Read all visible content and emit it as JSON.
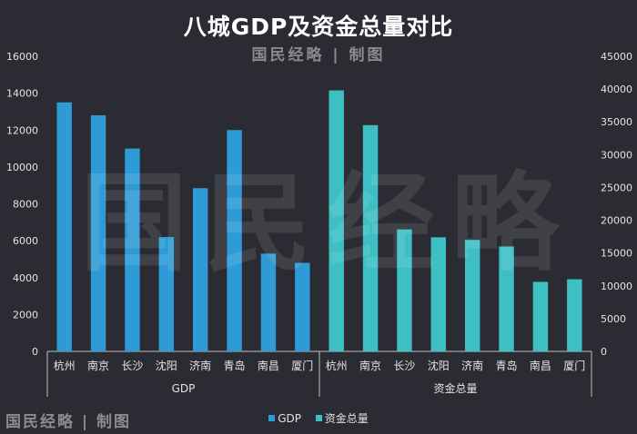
{
  "title": "八城GDP及资金总量对比",
  "subtitle": "国民经略 | 制图",
  "watermark_big": "国民经略",
  "watermark_corner": "国民经略 | 制图",
  "colors": {
    "background": "#2b2c33",
    "gdp_bar": "#2e9bd6",
    "fund_bar": "#3dbfc4",
    "axis_text": "#e4e4e4",
    "axis_line": "#bfbfbf"
  },
  "chart_data": {
    "type": "bar",
    "title": "八城GDP及资金总量对比",
    "groups": [
      {
        "name": "GDP",
        "axis": "left",
        "categories": [
          "杭州",
          "南京",
          "长沙",
          "沈阳",
          "济南",
          "青岛",
          "南昌",
          "厦门"
        ],
        "values": [
          13500,
          12800,
          11000,
          6200,
          8850,
          12000,
          5300,
          4800
        ]
      },
      {
        "name": "资金总量",
        "axis": "right",
        "categories": [
          "杭州",
          "南京",
          "长沙",
          "沈阳",
          "济南",
          "青岛",
          "南昌",
          "厦门"
        ],
        "values": [
          39800,
          34500,
          18600,
          17400,
          17000,
          16000,
          10600,
          11000
        ]
      }
    ],
    "left_axis": {
      "min": 0,
      "max": 16000,
      "ticks": [
        "0",
        "2000",
        "4000",
        "6000",
        "8000",
        "10000",
        "12000",
        "14000",
        "16000"
      ]
    },
    "right_axis": {
      "min": 0,
      "max": 45000,
      "ticks": [
        "0",
        "5000",
        "10000",
        "15000",
        "20000",
        "25000",
        "30000",
        "35000",
        "40000",
        "45000"
      ]
    },
    "legend": [
      "GDP",
      "资金总量"
    ],
    "legend_position": "bottom"
  }
}
